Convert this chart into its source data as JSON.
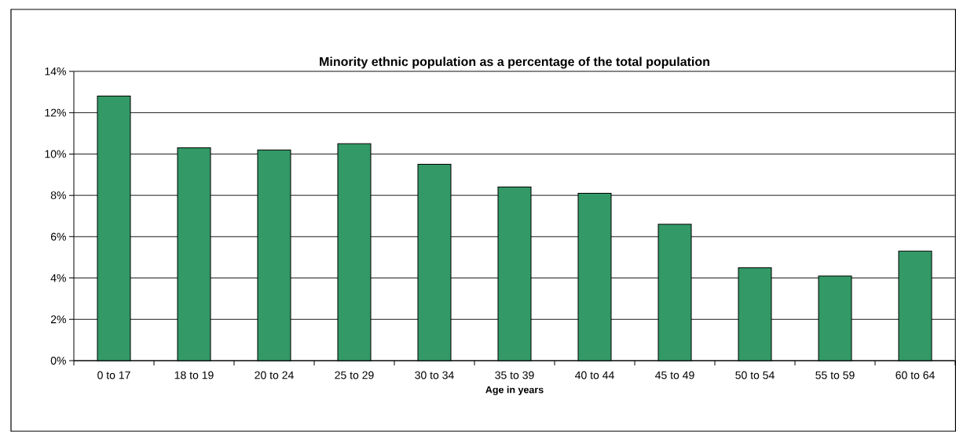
{
  "chart_data": {
    "type": "bar",
    "title": "Minority ethnic population as a percentage of the total population",
    "xlabel": "Age in years",
    "categories": [
      "0 to 17",
      "18 to 19",
      "20 to 24",
      "25 to 29",
      "30 to 34",
      "35 to 39",
      "40 to 44",
      "45 to 49",
      "50 to 54",
      "55 to 59",
      "60 to 64"
    ],
    "values": [
      12.8,
      10.3,
      10.2,
      10.5,
      9.5,
      8.4,
      8.1,
      6.6,
      4.5,
      4.1,
      5.3
    ],
    "color": "#339966",
    "ylim": [
      0,
      14
    ],
    "yticks": [
      {
        "value": 0,
        "label": "0%"
      },
      {
        "value": 2,
        "label": "2%"
      },
      {
        "value": 4,
        "label": "4%"
      },
      {
        "value": 6,
        "label": "6%"
      },
      {
        "value": 8,
        "label": "8%"
      },
      {
        "value": 10,
        "label": "10%"
      },
      {
        "value": 12,
        "label": "12%"
      },
      {
        "value": 14,
        "label": "14%"
      }
    ],
    "grid": "y"
  }
}
